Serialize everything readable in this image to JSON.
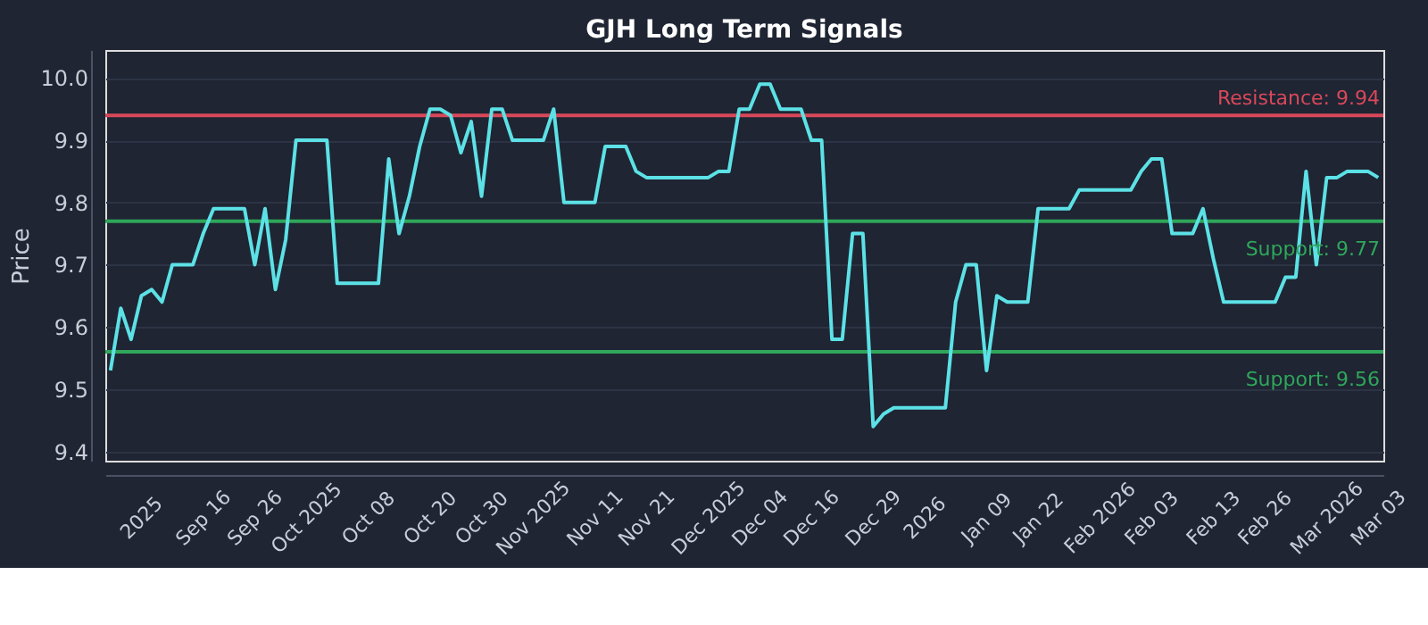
{
  "chart_data": {
    "type": "line",
    "title": "GJH Long Term Signals",
    "ylabel": "Price",
    "categories": [
      null,
      null,
      null,
      "2025",
      null,
      null,
      null,
      null,
      null,
      "Sep 16",
      null,
      null,
      null,
      null,
      "Sep 26",
      null,
      null,
      null,
      null,
      "Oct 2025",
      null,
      null,
      null,
      null,
      null,
      "Oct 08",
      null,
      null,
      null,
      null,
      null,
      "Oct 20",
      null,
      null,
      null,
      null,
      "Oct 30",
      null,
      null,
      null,
      null,
      "Nov 2025",
      null,
      null,
      null,
      null,
      null,
      "Nov 11",
      null,
      null,
      null,
      null,
      "Nov 21",
      null,
      null,
      null,
      null,
      null,
      "Dec 2025",
      null,
      null,
      null,
      null,
      "Dec 04",
      null,
      null,
      null,
      null,
      "Dec 16",
      null,
      null,
      null,
      null,
      null,
      "Dec 29",
      null,
      null,
      null,
      null,
      "2026",
      null,
      null,
      null,
      null,
      null,
      "Jan 09",
      null,
      null,
      null,
      null,
      "Jan 22",
      null,
      null,
      null,
      null,
      null,
      "Feb 2026",
      null,
      null,
      null,
      null,
      "Feb 03",
      null,
      null,
      null,
      null,
      null,
      "Feb 13",
      null,
      null,
      null,
      null,
      "Feb 26",
      null,
      null,
      null,
      null,
      null,
      "Mar 2026",
      null,
      null,
      null,
      null,
      "Mar 03"
    ],
    "series": [
      {
        "color": "#5ce1e6",
        "values": [
          9.53,
          9.63,
          9.58,
          9.65,
          9.66,
          9.64,
          9.7,
          9.7,
          9.7,
          9.75,
          9.79,
          9.79,
          9.79,
          9.79,
          9.7,
          9.79,
          9.66,
          9.74,
          9.9,
          9.9,
          9.9,
          9.9,
          9.67,
          9.67,
          9.67,
          9.67,
          9.67,
          9.87,
          9.75,
          9.81,
          9.89,
          9.95,
          9.95,
          9.94,
          9.88,
          9.93,
          9.81,
          9.95,
          9.95,
          9.9,
          9.9,
          9.9,
          9.9,
          9.95,
          9.8,
          9.8,
          9.8,
          9.8,
          9.89,
          9.89,
          9.89,
          9.85,
          9.84,
          9.84,
          9.84,
          9.84,
          9.84,
          9.84,
          9.84,
          9.85,
          9.85,
          9.95,
          9.95,
          9.99,
          9.99,
          9.95,
          9.95,
          9.95,
          9.9,
          9.9,
          9.58,
          9.58,
          9.75,
          9.75,
          9.44,
          9.46,
          9.47,
          9.47,
          9.47,
          9.47,
          9.47,
          9.47,
          9.64,
          9.7,
          9.7,
          9.53,
          9.65,
          9.64,
          9.64,
          9.64,
          9.79,
          9.79,
          9.79,
          9.79,
          9.82,
          9.82,
          9.82,
          9.82,
          9.82,
          9.82,
          9.85,
          9.87,
          9.87,
          9.75,
          9.75,
          9.75,
          9.79,
          9.71,
          9.64,
          9.64,
          9.64,
          9.64,
          9.64,
          9.64,
          9.68,
          9.68,
          9.85,
          9.7,
          9.84,
          9.84,
          9.85,
          9.85,
          9.85,
          9.84
        ]
      }
    ],
    "ylim": [
      9.385,
      10.045
    ],
    "yticks": [
      {
        "value": 9.4,
        "label": "9.4"
      },
      {
        "value": 9.5,
        "label": "9.5"
      },
      {
        "value": 9.6,
        "label": "9.6"
      },
      {
        "value": 9.7,
        "label": "9.7"
      },
      {
        "value": 9.8,
        "label": "9.8"
      },
      {
        "value": 9.9,
        "label": "9.9"
      },
      {
        "value": 10,
        "label": "10.0"
      }
    ],
    "grid": "y",
    "line_style": "solid",
    "ref_lines": [
      {
        "axis": "y",
        "value": 9.94,
        "label": "Resistance: 9.94",
        "color": "#d9485a"
      },
      {
        "axis": "y",
        "value": 9.77,
        "label": "Support: 9.77",
        "color": "#2fa65a"
      },
      {
        "axis": "y",
        "value": 9.56,
        "label": "Support: 9.56",
        "color": "#2fa65a"
      }
    ]
  }
}
